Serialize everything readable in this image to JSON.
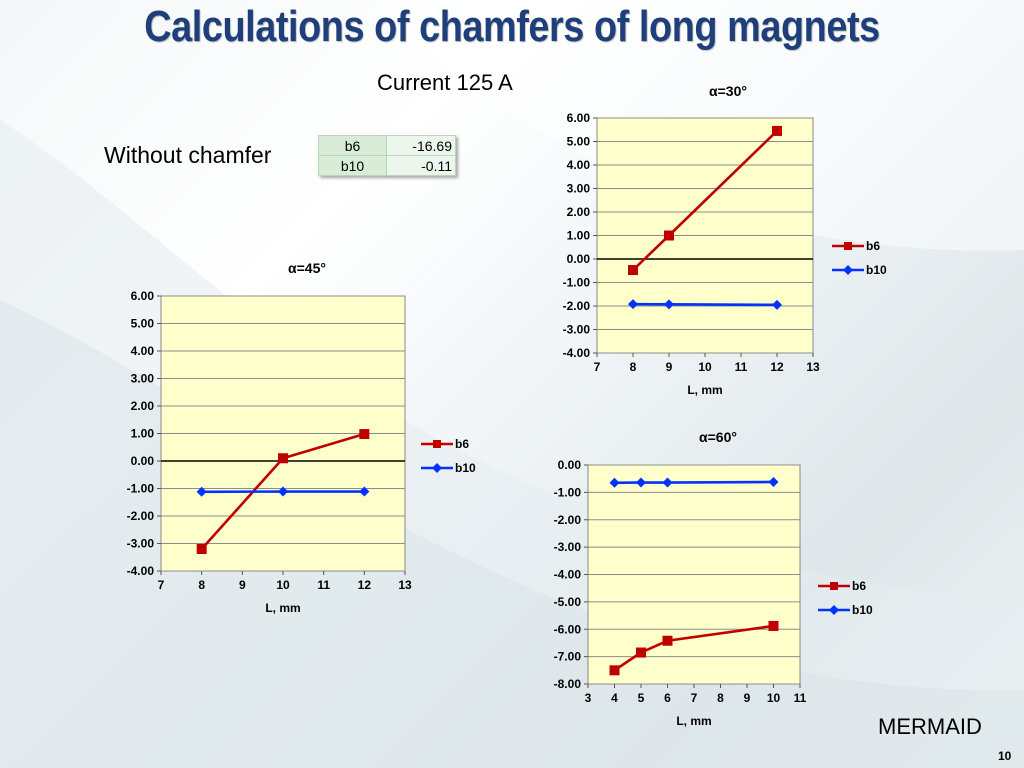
{
  "page": {
    "title": "Calculations of chamfers of long magnets",
    "subtitle": "Current 125 A",
    "without_chamfer_label": "Without chamfer",
    "table": [
      {
        "name": "b6",
        "value": "-16.69"
      },
      {
        "name": "b10",
        "value": "-0.11"
      }
    ],
    "footer": "MERMAID",
    "page_number": "10"
  },
  "colors": {
    "b6": "#c00000",
    "b10": "#0033ff",
    "plot_bg": "#ffffcc",
    "title": "#1f3f7a"
  },
  "chart_data": [
    {
      "type": "line",
      "title": "α=30°",
      "xlabel": "L, mm",
      "ylabel": "",
      "xlim": [
        7,
        13
      ],
      "ylim": [
        -4,
        6
      ],
      "xticks": [
        "7",
        "8",
        "9",
        "10",
        "11",
        "12",
        "13"
      ],
      "yticks": [
        "6.00",
        "5.00",
        "4.00",
        "3.00",
        "2.00",
        "1.00",
        "0.00",
        "-1.00",
        "-2.00",
        "-3.00",
        "-4.00"
      ],
      "grid": true,
      "legend": "right",
      "series": [
        {
          "name": "b6",
          "marker": "square",
          "x": [
            8,
            9,
            12
          ],
          "y": [
            -0.47,
            1.0,
            5.45
          ]
        },
        {
          "name": "b10",
          "marker": "diamond",
          "x": [
            8,
            9,
            12
          ],
          "y": [
            -1.92,
            -1.93,
            -1.95
          ]
        }
      ]
    },
    {
      "type": "line",
      "title": "α=45°",
      "xlabel": "L, mm",
      "ylabel": "",
      "xlim": [
        7,
        13
      ],
      "ylim": [
        -4,
        6
      ],
      "xticks": [
        "7",
        "8",
        "9",
        "10",
        "11",
        "12",
        "13"
      ],
      "yticks": [
        "6.00",
        "5.00",
        "4.00",
        "3.00",
        "2.00",
        "1.00",
        "0.00",
        "-1.00",
        "-2.00",
        "-3.00",
        "-4.00"
      ],
      "grid": true,
      "legend": "right",
      "series": [
        {
          "name": "b6",
          "marker": "square",
          "x": [
            8,
            10,
            12
          ],
          "y": [
            -3.2,
            0.1,
            0.98
          ]
        },
        {
          "name": "b10",
          "marker": "diamond",
          "x": [
            8,
            10,
            12
          ],
          "y": [
            -1.12,
            -1.11,
            -1.11
          ]
        }
      ]
    },
    {
      "type": "line",
      "title": "α=60°",
      "xlabel": "L, mm",
      "ylabel": "",
      "xlim": [
        3,
        11
      ],
      "ylim": [
        -8,
        0
      ],
      "xticks": [
        "3",
        "4",
        "5",
        "6",
        "7",
        "8",
        "9",
        "10",
        "11"
      ],
      "yticks": [
        "0.00",
        "-1.00",
        "-2.00",
        "-3.00",
        "-4.00",
        "-5.00",
        "-6.00",
        "-7.00",
        "-8.00"
      ],
      "grid": true,
      "legend": "right",
      "series": [
        {
          "name": "b6",
          "marker": "square",
          "x": [
            4,
            5,
            6,
            10
          ],
          "y": [
            -7.5,
            -6.85,
            -6.42,
            -5.88
          ]
        },
        {
          "name": "b10",
          "marker": "diamond",
          "x": [
            4,
            5,
            6,
            10
          ],
          "y": [
            -0.65,
            -0.64,
            -0.64,
            -0.62
          ]
        }
      ]
    }
  ]
}
